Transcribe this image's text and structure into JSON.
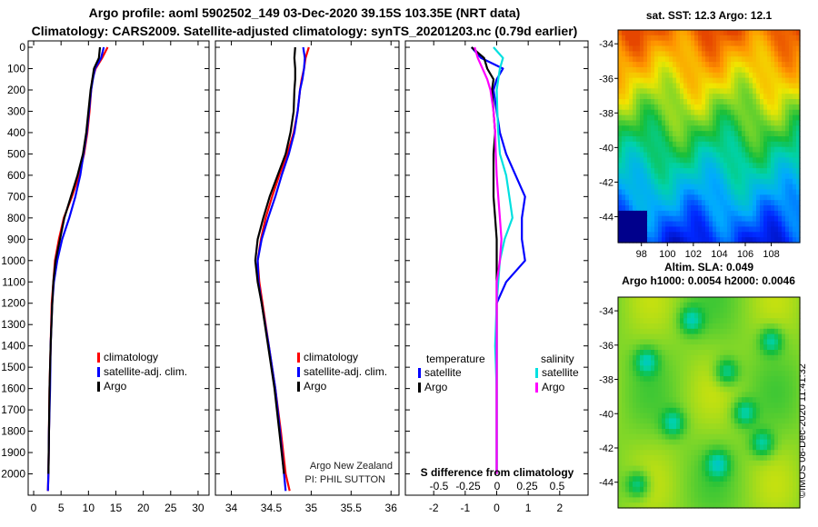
{
  "header": {
    "line1": "Argo profile: aoml 5902502_149 03-Dec-2020 39.15S 103.35E (NRT data)",
    "line2": "Climatology: CARS2009. Satellite-adjusted climatology: synTS_20201203.nc (0.79d earlier)"
  },
  "maps": {
    "sst_title": "sat. SST: 12.3 Argo: 12.1",
    "sla_title": "Altim. SLA: 0.049",
    "height_title": "Argo h1000: 0.0054 h2000: 0.0046",
    "lat_ticks": [
      "-34",
      "-36",
      "-38",
      "-40",
      "-42",
      "-44"
    ],
    "lon_ticks": [
      "98",
      "100",
      "102",
      "104",
      "106",
      "108"
    ],
    "lat_range": [
      -45.5,
      -33.2
    ],
    "lon_range": [
      96.2,
      110.2
    ]
  },
  "watermark": "©IMOS 08-Dec-2020 11:41:32",
  "chart_data": [
    {
      "type": "line",
      "panel": "temperature",
      "xlim": [
        -1,
        32
      ],
      "ylim": [
        2100,
        -30
      ],
      "xticks": [
        "0",
        "5",
        "10",
        "15",
        "20",
        "25",
        "30"
      ],
      "yticks": [
        "0",
        "100",
        "200",
        "300",
        "400",
        "500",
        "600",
        "700",
        "800",
        "900",
        "1000",
        "1100",
        "1200",
        "1300",
        "1400",
        "1500",
        "1600",
        "1700",
        "1800",
        "1900",
        "2000"
      ],
      "legend": {
        "labels": [
          "climatology",
          "satellite-adj. clim.",
          "Argo"
        ],
        "colors": [
          "#ff0000",
          "#0000ff",
          "#000000"
        ]
      },
      "series": [
        {
          "name": "climatology",
          "color": "#ff0000",
          "x": [
            13.5,
            12.5,
            11.3,
            10.7,
            10.5,
            10.2,
            9.8,
            9.2,
            8.3,
            7.0,
            5.5,
            4.6,
            3.9,
            3.6,
            3.3,
            3.1,
            2.9,
            2.8,
            2.7,
            2.6
          ],
          "y": [
            0,
            50,
            100,
            150,
            200,
            300,
            400,
            500,
            600,
            700,
            800,
            900,
            1000,
            1100,
            1200,
            1400,
            1600,
            1800,
            2000,
            2080
          ]
        },
        {
          "name": "satellite-adj. clim.",
          "color": "#0000ff",
          "x": [
            12.8,
            12.3,
            11.2,
            10.8,
            10.5,
            10.1,
            9.7,
            9.1,
            8.5,
            7.6,
            6.5,
            5.2,
            4.3,
            3.7,
            3.4,
            3.1,
            3.0,
            2.8,
            2.7,
            2.6
          ],
          "y": [
            0,
            50,
            100,
            150,
            200,
            300,
            400,
            500,
            600,
            700,
            800,
            900,
            1000,
            1100,
            1200,
            1400,
            1600,
            1800,
            2000,
            2080
          ]
        },
        {
          "name": "Argo",
          "color": "#000000",
          "x": [
            12.1,
            11.9,
            11.0,
            10.7,
            10.4,
            10.0,
            9.6,
            9.0,
            8.0,
            6.8,
            5.6,
            4.8,
            4.0,
            3.6,
            3.4,
            3.1,
            2.9,
            2.8,
            2.7
          ],
          "y": [
            0,
            50,
            100,
            150,
            200,
            300,
            400,
            500,
            600,
            700,
            800,
            900,
            1000,
            1100,
            1200,
            1400,
            1600,
            1800,
            2000
          ]
        }
      ]
    },
    {
      "type": "line",
      "panel": "salinity",
      "xlim": [
        33.8,
        36.1
      ],
      "ylim": [
        2100,
        -30
      ],
      "xticks": [
        "34",
        "34.5",
        "35",
        "35.5",
        "36"
      ],
      "legend": {
        "labels": [
          "climatology",
          "satellite-adj. clim.",
          "Argo"
        ],
        "colors": [
          "#ff0000",
          "#0000ff",
          "#000000"
        ]
      },
      "annotation": [
        "Argo New Zealand",
        "PI: PHIL SUTTON"
      ],
      "series": [
        {
          "name": "climatology",
          "color": "#ff0000",
          "x": [
            34.97,
            34.93,
            34.91,
            34.88,
            34.86,
            34.83,
            34.78,
            34.7,
            34.6,
            34.51,
            34.43,
            34.37,
            34.33,
            34.35,
            34.39,
            34.47,
            34.55,
            34.62,
            34.68,
            34.73
          ],
          "y": [
            0,
            50,
            100,
            150,
            200,
            300,
            400,
            500,
            600,
            700,
            800,
            900,
            1000,
            1100,
            1200,
            1400,
            1600,
            1800,
            2000,
            2080
          ]
        },
        {
          "name": "satellite-adj. clim.",
          "color": "#0000ff",
          "x": [
            34.9,
            34.92,
            34.91,
            34.89,
            34.86,
            34.83,
            34.79,
            34.72,
            34.63,
            34.55,
            34.46,
            34.38,
            34.33,
            34.34,
            34.38,
            34.47,
            34.55,
            34.61,
            34.66,
            34.68
          ],
          "y": [
            0,
            50,
            100,
            150,
            200,
            300,
            400,
            500,
            600,
            700,
            800,
            900,
            1000,
            1100,
            1200,
            1400,
            1600,
            1800,
            2000,
            2080
          ]
        },
        {
          "name": "Argo",
          "color": "#000000",
          "x": [
            34.8,
            34.79,
            34.8,
            34.8,
            34.79,
            34.78,
            34.74,
            34.68,
            34.58,
            34.48,
            34.4,
            34.33,
            34.3,
            34.33,
            34.38,
            34.46,
            34.54,
            34.6,
            34.66
          ],
          "y": [
            0,
            50,
            100,
            150,
            200,
            300,
            400,
            500,
            600,
            700,
            800,
            900,
            1000,
            1100,
            1200,
            1400,
            1600,
            1800,
            2000
          ]
        }
      ]
    },
    {
      "type": "line",
      "panel": "difference",
      "xlim": [
        -2.9,
        2.9
      ],
      "ylim": [
        2100,
        -30
      ],
      "xticks": [
        "-2",
        "-1",
        "0",
        "1",
        "2"
      ],
      "xlabel": "S difference from climatology",
      "secondary_xticks": [
        "-0.5",
        "-0.25",
        "0",
        "0.25",
        "0.5"
      ],
      "legend": {
        "temperature_heading": "temperature",
        "salinity_heading": "salinity",
        "labels": [
          "satellite",
          "Argo",
          "satellite",
          "Argo"
        ],
        "colors": [
          "#0000ff",
          "#000000",
          "#00e0e0",
          "#ff00ff"
        ]
      },
      "series": [
        {
          "name": "temperature satellite",
          "color": "#0000ff",
          "x": [
            -0.8,
            -0.5,
            0.2,
            0.0,
            -0.1,
            0.0,
            0.1,
            0.3,
            0.6,
            0.9,
            0.8,
            0.8,
            0.9,
            0.3,
            0.0,
            0.0,
            0.0,
            0.0,
            0.0
          ],
          "y": [
            0,
            50,
            100,
            150,
            200,
            300,
            400,
            500,
            600,
            700,
            800,
            900,
            1000,
            1100,
            1200,
            1400,
            1600,
            1800,
            2000
          ]
        },
        {
          "name": "temperature Argo",
          "color": "#000000",
          "x": [
            -0.8,
            -0.4,
            -0.3,
            -0.1,
            -0.15,
            -0.1,
            -0.05,
            -0.1,
            -0.1,
            -0.1,
            -0.05,
            0.0,
            0.0,
            0.0,
            0.0,
            0.0,
            0.0,
            0.0,
            0.0
          ],
          "y": [
            0,
            50,
            100,
            150,
            200,
            300,
            400,
            500,
            600,
            700,
            800,
            900,
            1000,
            1100,
            1200,
            1400,
            1600,
            1800,
            2000
          ]
        },
        {
          "name": "salinity satellite",
          "color": "#00e0e0",
          "x": [
            -0.1,
            0.2,
            0.1,
            0.05,
            0.0,
            0.02,
            0.05,
            0.1,
            0.3,
            0.4,
            0.5,
            0.25,
            0.1,
            0.05,
            0.0,
            -0.05,
            0.0,
            0.0,
            0.0
          ],
          "y": [
            0,
            50,
            100,
            150,
            200,
            300,
            400,
            500,
            600,
            700,
            800,
            900,
            1000,
            1100,
            1200,
            1400,
            1600,
            1800,
            2000
          ]
        },
        {
          "name": "salinity Argo",
          "color": "#ff00ff",
          "x": [
            -0.7,
            -0.6,
            -0.45,
            -0.3,
            -0.2,
            -0.1,
            -0.05,
            -0.03,
            0.0,
            0.05,
            0.1,
            0.15,
            0.1,
            0.0,
            0.0,
            0.0,
            0.0,
            0.0,
            0.0
          ],
          "y": [
            0,
            50,
            100,
            150,
            200,
            300,
            400,
            500,
            600,
            700,
            800,
            900,
            1000,
            1100,
            1200,
            1400,
            1600,
            1800,
            2000
          ]
        }
      ]
    }
  ]
}
